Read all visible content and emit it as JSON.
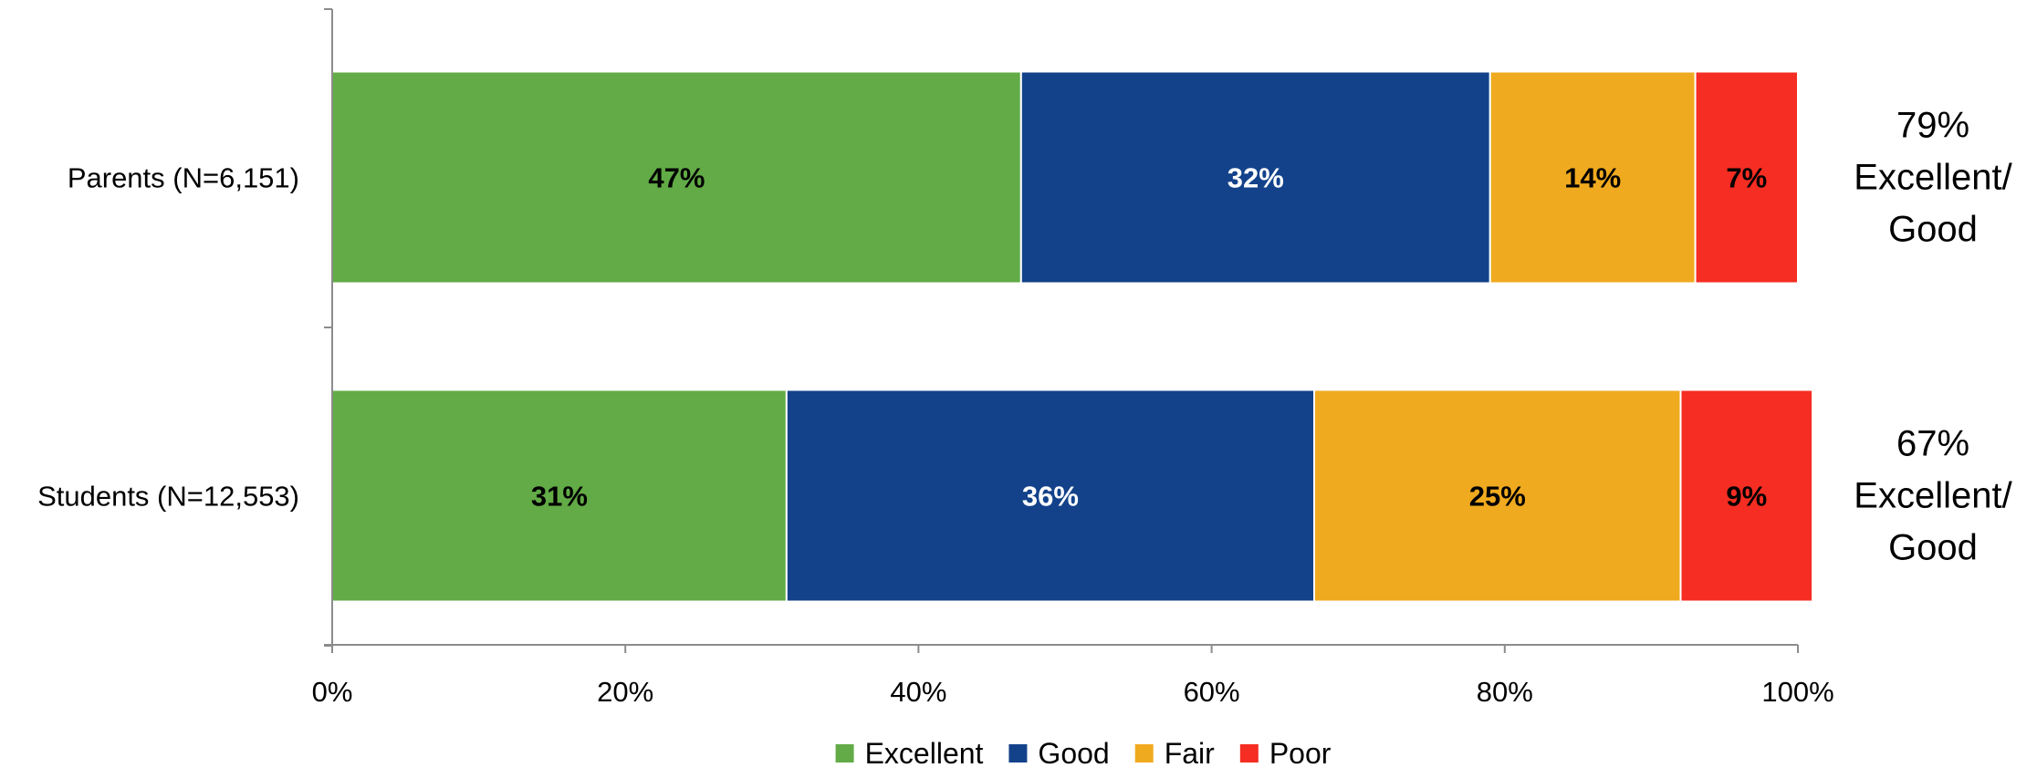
{
  "chart_data": {
    "type": "bar",
    "orientation": "horizontal",
    "stacked": true,
    "categories": [
      "Parents (N=6,151)",
      "Students (N=12,553)"
    ],
    "series": [
      {
        "name": "Excellent",
        "values": [
          47,
          31
        ],
        "labels": [
          "47%",
          "31%"
        ],
        "color": "#62AB46",
        "label_color": "#000000"
      },
      {
        "name": "Good",
        "values": [
          32,
          36
        ],
        "labels": [
          "32%",
          "36%"
        ],
        "color": "#13428A",
        "label_color": "#FFFFFF"
      },
      {
        "name": "Fair",
        "values": [
          14,
          25
        ],
        "labels": [
          "14%",
          "25%"
        ],
        "color": "#F0AA1F",
        "label_color": "#000000"
      },
      {
        "name": "Poor",
        "values": [
          7,
          9
        ],
        "labels": [
          "7%",
          "9%"
        ],
        "color": "#F52D22",
        "label_color": "#000000"
      }
    ],
    "annotations": [
      [
        "79%",
        "Excellent/",
        "Good"
      ],
      [
        "67%",
        "Excellent/",
        "Good"
      ]
    ],
    "xlim": [
      0,
      100
    ],
    "x_ticks": [
      0,
      20,
      40,
      60,
      80,
      100
    ],
    "x_tick_labels": [
      "0%",
      "20%",
      "40%",
      "60%",
      "80%",
      "100%"
    ],
    "grid": false,
    "legend_position": "bottom",
    "title": "",
    "xlabel": "",
    "ylabel": ""
  }
}
